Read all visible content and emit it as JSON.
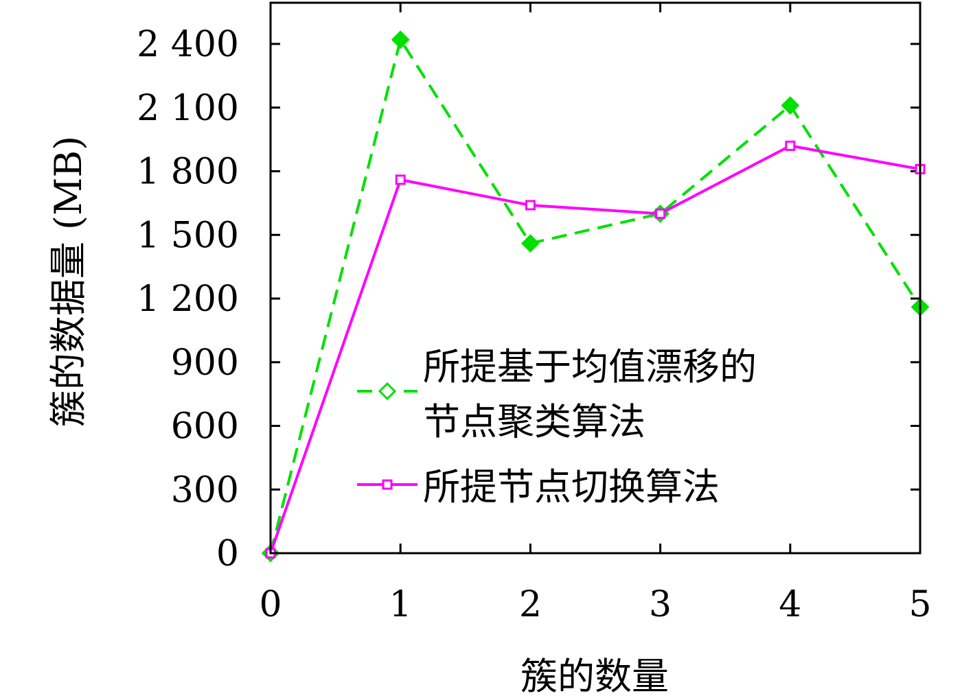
{
  "chart_data": {
    "type": "line",
    "title": "",
    "xlabel": "簇的数量",
    "ylabel": "簇的数据量 (MB)",
    "xlim": [
      0,
      5
    ],
    "ylim": [
      0,
      2400
    ],
    "x": [
      0,
      1,
      2,
      3,
      4,
      5
    ],
    "x_ticks": [
      "0",
      "1",
      "2",
      "3",
      "4",
      "5"
    ],
    "y_tick_values": [
      0,
      300,
      600,
      900,
      1200,
      1500,
      1800,
      2100,
      2400
    ],
    "y_ticks": [
      "0",
      "300",
      "600",
      "900",
      "1 200",
      "1 500",
      "1 800",
      "2 100",
      "2 400"
    ],
    "grid": false,
    "legend_position": "center-right",
    "series": [
      {
        "name_lines": [
          "所提基于均值漂移的",
          "节点聚类算法"
        ],
        "color": "#00e000",
        "line_style": "dashed",
        "marker": "diamond",
        "values": [
          0,
          2420,
          1460,
          1600,
          2110,
          1160
        ]
      },
      {
        "name_lines": [
          "所提节点切换算法"
        ],
        "color": "#ff00ff",
        "line_style": "solid",
        "marker": "square",
        "values": [
          0,
          1760,
          1640,
          1600,
          1920,
          1810
        ]
      }
    ]
  }
}
